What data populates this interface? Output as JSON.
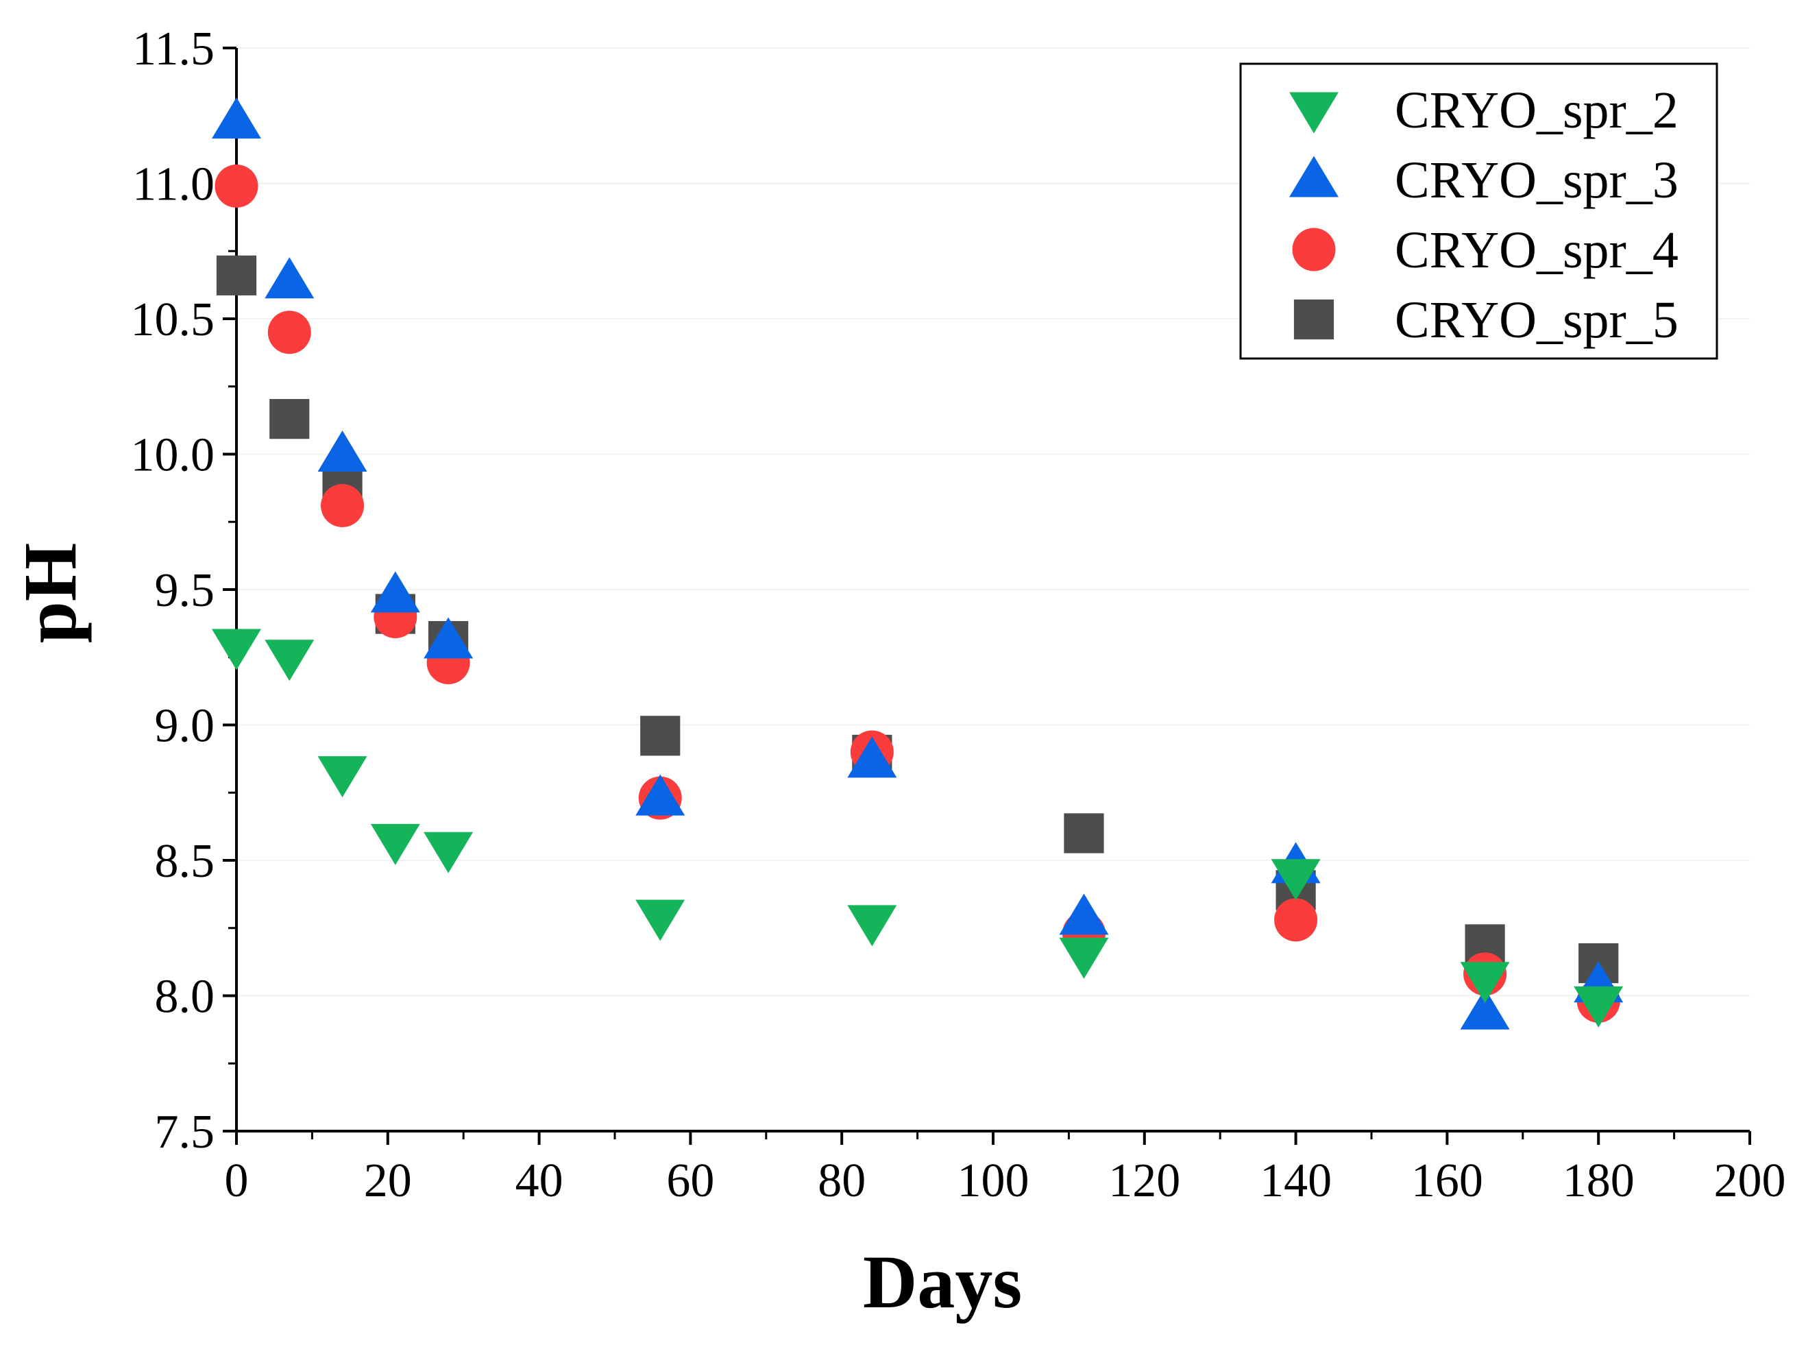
{
  "chart_data": {
    "type": "scatter",
    "title": "",
    "xlabel": "Days",
    "ylabel": "pH",
    "xlim": [
      0,
      200
    ],
    "ylim": [
      7.5,
      11.5
    ],
    "x_ticks": [
      0,
      20,
      40,
      60,
      80,
      100,
      120,
      140,
      160,
      180,
      200
    ],
    "x_tick_labels": [
      "0",
      "20",
      "40",
      "60",
      "80",
      "100",
      "120",
      "140",
      "160",
      "180",
      "200"
    ],
    "y_ticks": [
      7.5,
      8.0,
      8.5,
      9.0,
      9.5,
      10.0,
      10.5,
      11.0,
      11.5
    ],
    "y_tick_labels": [
      "7.5",
      "8.0",
      "8.5",
      "9.0",
      "9.5",
      "10.0",
      "10.5",
      "11.0",
      "11.5"
    ],
    "grid": true,
    "legend_position": "top-right",
    "series": [
      {
        "name": "CRYO_spr_5",
        "marker": "square",
        "color": "#4d4d4d",
        "x": [
          0,
          7,
          14,
          21,
          28,
          56,
          84,
          112,
          140,
          165,
          180
        ],
        "y": [
          10.66,
          10.13,
          9.87,
          9.41,
          9.31,
          8.96,
          8.89,
          8.6,
          8.39,
          8.19,
          8.12
        ]
      },
      {
        "name": "CRYO_spr_4",
        "marker": "circle",
        "color": "#fa3c3c",
        "x": [
          0,
          7,
          14,
          21,
          28,
          56,
          84,
          112,
          140,
          165,
          180
        ],
        "y": [
          10.99,
          10.45,
          9.81,
          9.4,
          9.23,
          8.73,
          8.9,
          8.23,
          8.28,
          8.08,
          7.98
        ]
      },
      {
        "name": "CRYO_spr_3",
        "marker": "triangle-up",
        "color": "#0a64e6",
        "x": [
          0,
          7,
          14,
          21,
          28,
          56,
          84,
          112,
          140,
          165,
          180
        ],
        "y": [
          11.23,
          10.64,
          10.0,
          9.48,
          9.31,
          8.73,
          8.87,
          8.29,
          8.48,
          7.94,
          8.04
        ]
      },
      {
        "name": "CRYO_spr_2",
        "marker": "triangle-down",
        "color": "#14b45a",
        "x": [
          0,
          7,
          14,
          21,
          28,
          56,
          84,
          112,
          140,
          165,
          180
        ],
        "y": [
          9.29,
          9.25,
          8.82,
          8.57,
          8.54,
          8.29,
          8.27,
          8.15,
          8.44,
          8.06,
          7.97
        ]
      }
    ],
    "legend_order": [
      "CRYO_spr_2",
      "CRYO_spr_3",
      "CRYO_spr_4",
      "CRYO_spr_5"
    ]
  }
}
